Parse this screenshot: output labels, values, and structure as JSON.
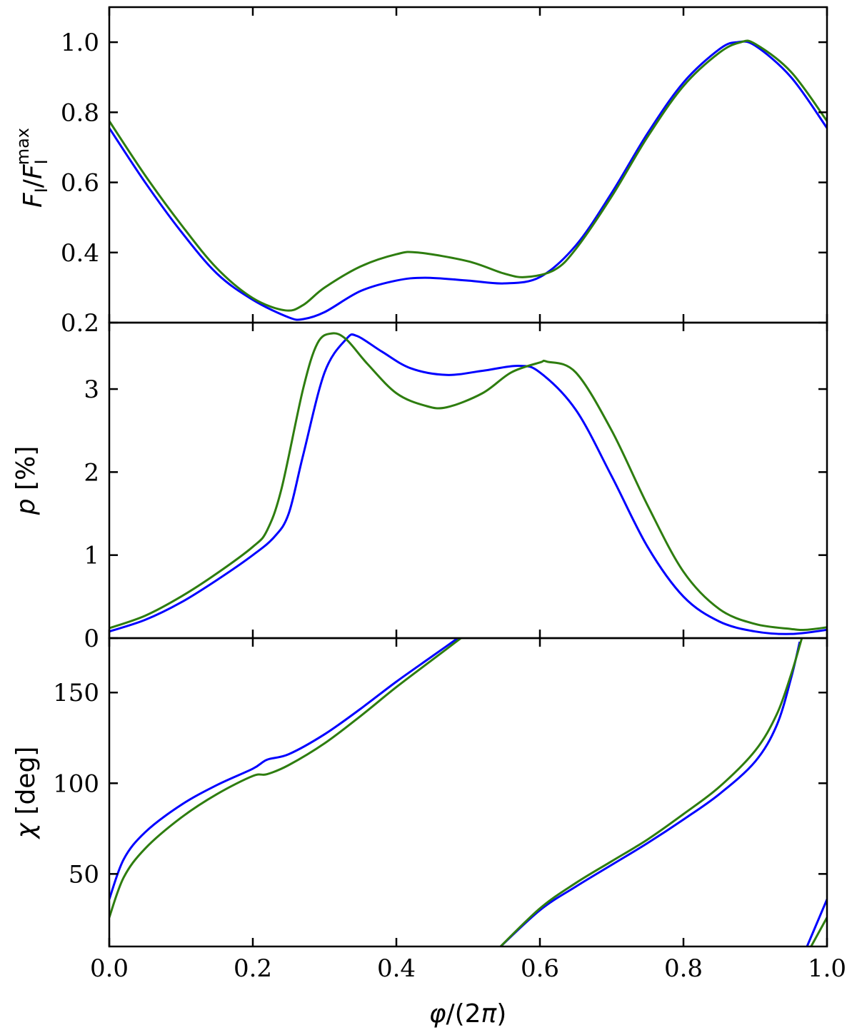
{
  "chart_data": [
    {
      "type": "line",
      "panel": "top",
      "ylabel": "F_I/F_I^max",
      "xlim": [
        0,
        1
      ],
      "ylim": [
        0.2,
        1.1
      ],
      "yticks": [
        0.2,
        0.4,
        0.6,
        0.8,
        1.0
      ],
      "ytick_labels": [
        "0.2",
        "0.4",
        "0.6",
        "0.8",
        "1.0"
      ],
      "grid": false,
      "series": [
        {
          "color": "#0000ff",
          "x": [
            0,
            0.05,
            0.1,
            0.15,
            0.2,
            0.25,
            0.27,
            0.3,
            0.35,
            0.4,
            0.44,
            0.5,
            0.55,
            0.6,
            0.65,
            0.7,
            0.75,
            0.8,
            0.85,
            0.875,
            0.9,
            0.95,
            1.0
          ],
          "y": [
            0.755,
            0.6,
            0.46,
            0.34,
            0.265,
            0.215,
            0.21,
            0.23,
            0.29,
            0.32,
            0.328,
            0.32,
            0.312,
            0.33,
            0.42,
            0.57,
            0.74,
            0.885,
            0.98,
            1.0,
            0.99,
            0.9,
            0.755
          ]
        },
        {
          "color": "#2e7d0f",
          "x": [
            0,
            0.05,
            0.1,
            0.15,
            0.2,
            0.245,
            0.27,
            0.3,
            0.35,
            0.4,
            0.43,
            0.5,
            0.55,
            0.58,
            0.62,
            0.65,
            0.7,
            0.75,
            0.8,
            0.85,
            0.88,
            0.9,
            0.95,
            1.0
          ],
          "y": [
            0.775,
            0.62,
            0.48,
            0.355,
            0.27,
            0.235,
            0.25,
            0.3,
            0.36,
            0.395,
            0.4,
            0.375,
            0.34,
            0.33,
            0.35,
            0.41,
            0.56,
            0.73,
            0.875,
            0.97,
            1.0,
            0.995,
            0.915,
            0.775
          ]
        }
      ]
    },
    {
      "type": "line",
      "panel": "middle",
      "ylabel": "p [%]",
      "xlim": [
        0,
        1
      ],
      "ylim": [
        0,
        3.8
      ],
      "yticks": [
        0,
        1,
        2,
        3
      ],
      "ytick_labels": [
        "0",
        "1",
        "2",
        "3"
      ],
      "grid": false,
      "series": [
        {
          "color": "#0000ff",
          "x": [
            0,
            0.05,
            0.1,
            0.15,
            0.2,
            0.23,
            0.25,
            0.27,
            0.3,
            0.33,
            0.345,
            0.38,
            0.42,
            0.47,
            0.52,
            0.57,
            0.6,
            0.65,
            0.7,
            0.75,
            0.8,
            0.85,
            0.9,
            0.95,
            1.0
          ],
          "y": [
            0.08,
            0.22,
            0.43,
            0.7,
            1.0,
            1.22,
            1.5,
            2.2,
            3.2,
            3.6,
            3.64,
            3.45,
            3.25,
            3.17,
            3.22,
            3.28,
            3.2,
            2.75,
            1.95,
            1.1,
            0.5,
            0.2,
            0.08,
            0.05,
            0.1
          ]
        },
        {
          "color": "#2e7d0f",
          "x": [
            0,
            0.05,
            0.1,
            0.15,
            0.2,
            0.22,
            0.24,
            0.27,
            0.29,
            0.31,
            0.33,
            0.36,
            0.4,
            0.44,
            0.47,
            0.52,
            0.56,
            0.6,
            0.61,
            0.65,
            0.7,
            0.75,
            0.8,
            0.85,
            0.9,
            0.95,
            0.97,
            1.0
          ],
          "y": [
            0.12,
            0.27,
            0.5,
            0.78,
            1.1,
            1.3,
            1.8,
            3.0,
            3.55,
            3.67,
            3.6,
            3.3,
            2.95,
            2.8,
            2.78,
            2.95,
            3.2,
            3.32,
            3.33,
            3.2,
            2.5,
            1.6,
            0.8,
            0.35,
            0.17,
            0.11,
            0.1,
            0.13
          ]
        }
      ]
    },
    {
      "type": "line",
      "panel": "bottom",
      "ylabel": "χ [deg]",
      "xlabel": "φ/(2π)",
      "xlim": [
        0,
        1
      ],
      "ylim": [
        10,
        180
      ],
      "yticks": [
        50,
        100,
        150
      ],
      "ytick_labels": [
        "50",
        "100",
        "150"
      ],
      "xticks": [
        0,
        0.2,
        0.4,
        0.6,
        0.8,
        1.0
      ],
      "xtick_labels": [
        "0.0",
        "0.2",
        "0.4",
        "0.6",
        "0.8",
        "1.0"
      ],
      "grid": false,
      "series": [
        {
          "color": "#0000ff",
          "segments": [
            {
              "x": [
                0,
                0.02,
                0.05,
                0.1,
                0.15,
                0.2,
                0.22,
                0.25,
                0.3,
                0.35,
                0.4,
                0.45,
                0.5,
                0.507
              ],
              "y": [
                36,
                58,
                73,
                88,
                99,
                108,
                113,
                116,
                127,
                141,
                156,
                170,
                184,
                186
              ]
            },
            {
              "x": [
                0.54,
                0.6,
                0.65,
                0.7,
                0.75,
                0.8,
                0.85,
                0.9,
                0.93,
                0.95,
                0.962
              ],
              "y": [
                8,
                30,
                43,
                55,
                67,
                80,
                94,
                112,
                132,
                158,
                178
              ]
            },
            {
              "x": [
                0.97,
                1.0
              ],
              "y": [
                8,
                36
              ]
            }
          ]
        },
        {
          "color": "#2e7d0f",
          "segments": [
            {
              "x": [
                0,
                0.02,
                0.05,
                0.1,
                0.15,
                0.2,
                0.22,
                0.25,
                0.3,
                0.35,
                0.4,
                0.45,
                0.5,
                0.51
              ],
              "y": [
                26,
                48,
                64,
                81,
                94,
                104,
                105,
                110,
                122,
                137,
                153,
                168,
                183,
                186
              ]
            },
            {
              "x": [
                0.54,
                0.6,
                0.65,
                0.7,
                0.75,
                0.8,
                0.85,
                0.9,
                0.93,
                0.95,
                0.965,
                0.97
              ],
              "y": [
                8,
                31,
                45,
                57,
                69,
                83,
                98,
                118,
                138,
                160,
                180,
                186
              ]
            },
            {
              "x": [
                0.975,
                1.0
              ],
              "y": [
                8,
                26
              ]
            }
          ]
        }
      ]
    }
  ]
}
